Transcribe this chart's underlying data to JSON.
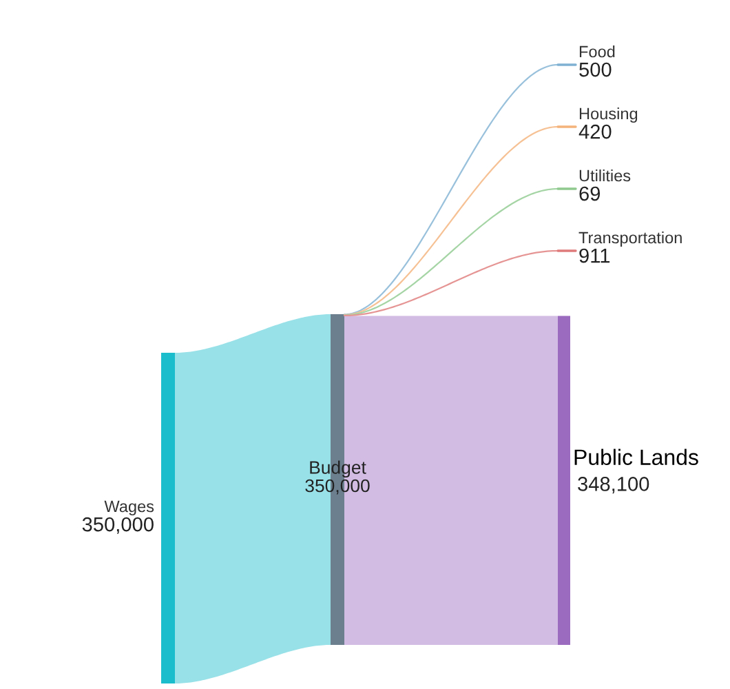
{
  "chart_data": {
    "type": "other",
    "categories": [
      "Wages",
      "Budget",
      "Food",
      "Housing",
      "Utilities",
      "Transportation",
      "Public Lands"
    ],
    "values": [
      350000,
      350000,
      500,
      420,
      69,
      911,
      348100
    ],
    "value_labels": [
      "350,000",
      "350,000",
      "500",
      "420",
      "69",
      "911",
      "348,100"
    ],
    "colors": [
      "#1bbccc",
      "#6b7f8f",
      "#7fb1d3",
      "#f4b37a",
      "#8fc98f",
      "#e07b7b",
      "#9b6bc0"
    ],
    "data_labels": true
  }
}
